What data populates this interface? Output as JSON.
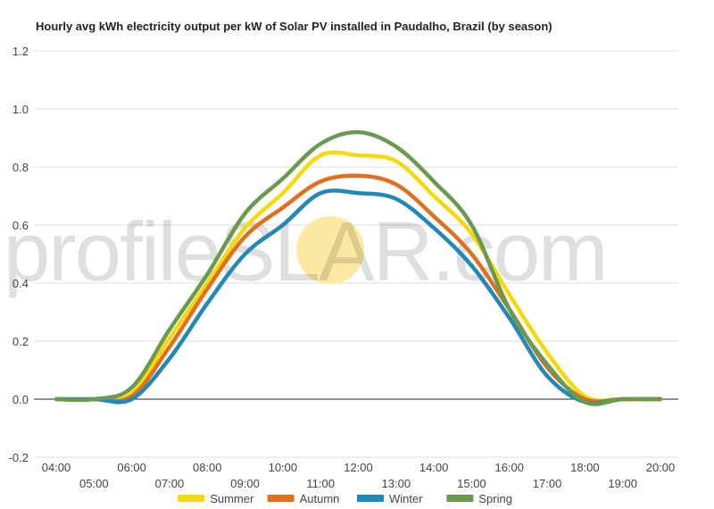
{
  "watermark": {
    "text_left": "profile",
    "text_s": "S",
    "text_right": "LAR.com",
    "sun_color": "#fde9a3"
  },
  "chart_data": {
    "type": "line",
    "title": "Hourly avg kWh electricity output per kW of Solar PV installed in Paudalho, Brazil (by season)",
    "xlabel": "",
    "ylabel": "",
    "ylim": [
      -0.2,
      1.2
    ],
    "yticks": [
      "-0.2",
      "0.0",
      "0.2",
      "0.4",
      "0.6",
      "0.8",
      "1.0",
      "1.2"
    ],
    "x": [
      "04:00",
      "05:00",
      "06:00",
      "07:00",
      "08:00",
      "09:00",
      "10:00",
      "11:00",
      "12:00",
      "13:00",
      "14:00",
      "15:00",
      "16:00",
      "17:00",
      "18:00",
      "19:00",
      "20:00"
    ],
    "grid": true,
    "legend_position": "bottom",
    "series": [
      {
        "name": "Summer",
        "color": "#f5d90a",
        "values": [
          0.0,
          0.0,
          0.02,
          0.21,
          0.4,
          0.59,
          0.71,
          0.84,
          0.84,
          0.82,
          0.7,
          0.57,
          0.36,
          0.16,
          0.01,
          0.0,
          0.0
        ]
      },
      {
        "name": "Autumn",
        "color": "#e07020",
        "values": [
          0.0,
          0.0,
          0.01,
          0.18,
          0.38,
          0.56,
          0.66,
          0.75,
          0.77,
          0.74,
          0.63,
          0.5,
          0.31,
          0.11,
          0.0,
          0.0,
          0.0
        ]
      },
      {
        "name": "Winter",
        "color": "#2288b8",
        "values": [
          0.0,
          0.0,
          0.0,
          0.14,
          0.33,
          0.5,
          0.6,
          0.71,
          0.71,
          0.69,
          0.59,
          0.46,
          0.28,
          0.08,
          -0.01,
          0.0,
          0.0
        ]
      },
      {
        "name": "Spring",
        "color": "#6a9a50",
        "values": [
          0.0,
          0.0,
          0.04,
          0.24,
          0.43,
          0.64,
          0.76,
          0.88,
          0.92,
          0.87,
          0.75,
          0.6,
          0.31,
          0.12,
          -0.01,
          0.0,
          0.0
        ]
      }
    ]
  }
}
